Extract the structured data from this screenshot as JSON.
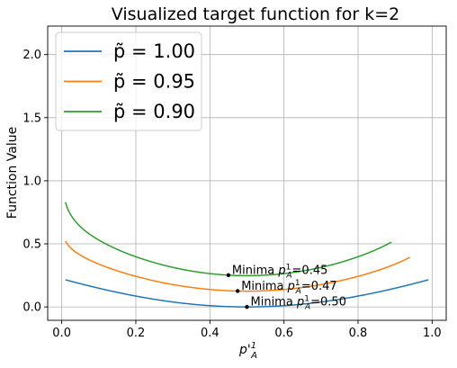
{
  "chart_data": {
    "type": "line",
    "title": "Visualized target function for k=2",
    "xlabel_base": "p'",
    "xlabel_sup": "1",
    "xlabel_sub": "A",
    "ylabel": "Function Value",
    "xlim": [
      -0.038,
      1.038
    ],
    "ylim": [
      -0.106,
      2.226
    ],
    "x_ticks": [
      0.0,
      0.2,
      0.4,
      0.6,
      0.8,
      1.0
    ],
    "x_tick_labels": [
      "0.0",
      "0.2",
      "0.4",
      "0.6",
      "0.8",
      "1.0"
    ],
    "y_ticks": [
      0.0,
      0.5,
      1.0,
      1.5,
      2.0
    ],
    "y_tick_labels": [
      "0.0",
      "0.5",
      "1.0",
      "1.5",
      "2.0"
    ],
    "grid": true,
    "legend_position": "top-left",
    "series": [
      {
        "name": "p̃ = 1.00",
        "p": 1.0,
        "x_range": [
          0.01,
          0.99
        ],
        "color": "#1f77b4",
        "minimum": {
          "x": 0.5,
          "y": 0.0,
          "label_prefix": "Minima ",
          "label_value": "=0.50"
        }
      },
      {
        "name": "p̃ = 0.95",
        "p": 0.95,
        "x_range": [
          0.01,
          0.94
        ],
        "color": "#ff7f0e",
        "minimum": {
          "x": 0.475,
          "y": 0.126,
          "label_prefix": "Minima ",
          "label_value": "=0.47"
        }
      },
      {
        "name": "p̃ = 0.90",
        "p": 0.9,
        "x_range": [
          0.01,
          0.89
        ],
        "color": "#2ca02c",
        "minimum": {
          "x": 0.45,
          "y": 0.252,
          "label_prefix": "Minima ",
          "label_value": "=0.45"
        }
      }
    ]
  }
}
